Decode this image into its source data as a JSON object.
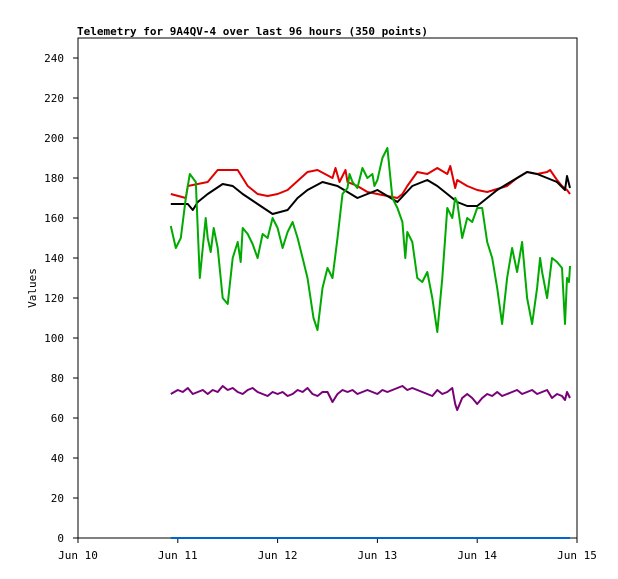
{
  "chart_data": {
    "type": "line",
    "title": "Telemetry for 9A4QV-4 over last 96 hours (350 points)",
    "xlabel": "",
    "ylabel": "Values",
    "ylim": [
      0,
      250
    ],
    "yticks": [
      0,
      20,
      40,
      60,
      80,
      100,
      120,
      140,
      160,
      180,
      200,
      220,
      240
    ],
    "xlim_days": [
      10,
      15
    ],
    "xticks": [
      {
        "day": 10,
        "label": "Jun 10"
      },
      {
        "day": 11,
        "label": "Jun 11"
      },
      {
        "day": 12,
        "label": "Jun 12"
      },
      {
        "day": 13,
        "label": "Jun 13"
      },
      {
        "day": 14,
        "label": "Jun 14"
      },
      {
        "day": 15,
        "label": "Jun 15"
      }
    ],
    "grid": false,
    "legend": "none",
    "series": [
      {
        "color": "#e00000",
        "x": [
          10.93,
          11.08,
          11.1,
          11.2,
          11.3,
          11.4,
          11.6,
          11.7,
          11.8,
          11.9,
          12.0,
          12.1,
          12.3,
          12.4,
          12.55,
          12.58,
          12.62,
          12.68,
          12.7,
          12.8,
          12.9,
          13.0,
          13.1,
          13.2,
          13.25,
          13.3,
          13.4,
          13.5,
          13.6,
          13.7,
          13.73,
          13.78,
          13.8,
          13.9,
          14.0,
          14.1,
          14.3,
          14.4,
          14.5,
          14.6,
          14.7,
          14.73,
          14.8,
          14.85,
          14.9,
          14.93
        ],
        "y": [
          172,
          170,
          176,
          177,
          178,
          184,
          184,
          176,
          172,
          171,
          172,
          174,
          183,
          184,
          180,
          185,
          178,
          184,
          178,
          176,
          173,
          172,
          171,
          170,
          172,
          176,
          183,
          182,
          185,
          182,
          186,
          175,
          179,
          176,
          174,
          173,
          176,
          180,
          183,
          182,
          183,
          184,
          179,
          176,
          174,
          172
        ]
      },
      {
        "color": "#000000",
        "x": [
          10.93,
          11.1,
          11.15,
          11.2,
          11.3,
          11.45,
          11.55,
          11.65,
          11.8,
          11.95,
          12.1,
          12.2,
          12.3,
          12.45,
          12.6,
          12.7,
          12.8,
          12.9,
          13.0,
          13.1,
          13.2,
          13.35,
          13.5,
          13.6,
          13.7,
          13.8,
          13.9,
          14.0,
          14.1,
          14.2,
          14.3,
          14.4,
          14.5,
          14.6,
          14.7,
          14.8,
          14.88,
          14.9,
          14.93
        ],
        "y": [
          167,
          167,
          164,
          168,
          172,
          177,
          176,
          172,
          167,
          162,
          164,
          170,
          174,
          178,
          176,
          173,
          170,
          172,
          174,
          171,
          168,
          176,
          179,
          176,
          172,
          168,
          166,
          166,
          170,
          174,
          177,
          180,
          183,
          182,
          180,
          178,
          174,
          181,
          175
        ]
      },
      {
        "color": "#00aa00",
        "x": [
          10.93,
          10.98,
          11.03,
          11.08,
          11.12,
          11.18,
          11.22,
          11.28,
          11.3,
          11.33,
          11.36,
          11.4,
          11.45,
          11.5,
          11.55,
          11.6,
          11.63,
          11.65,
          11.7,
          11.75,
          11.8,
          11.85,
          11.9,
          11.95,
          12.0,
          12.05,
          12.1,
          12.15,
          12.2,
          12.25,
          12.3,
          12.33,
          12.36,
          12.4,
          12.45,
          12.5,
          12.55,
          12.6,
          12.65,
          12.7,
          12.72,
          12.75,
          12.8,
          12.85,
          12.9,
          12.95,
          12.97,
          13.0,
          13.05,
          13.1,
          13.15,
          13.2,
          13.25,
          13.28,
          13.3,
          13.35,
          13.4,
          13.45,
          13.5,
          13.55,
          13.6,
          13.65,
          13.7,
          13.75,
          13.78,
          13.8,
          13.85,
          13.9,
          13.95,
          14.0,
          14.05,
          14.1,
          14.15,
          14.2,
          14.25,
          14.3,
          14.35,
          14.4,
          14.45,
          14.5,
          14.55,
          14.6,
          14.63,
          14.65,
          14.7,
          14.75,
          14.8,
          14.85,
          14.88,
          14.9,
          14.92,
          14.93
        ],
        "y": [
          156,
          145,
          150,
          170,
          182,
          178,
          130,
          160,
          150,
          143,
          155,
          145,
          120,
          117,
          140,
          148,
          138,
          155,
          152,
          147,
          140,
          152,
          150,
          160,
          155,
          145,
          153,
          158,
          150,
          140,
          130,
          120,
          110,
          104,
          125,
          135,
          130,
          150,
          172,
          175,
          182,
          178,
          175,
          185,
          180,
          182,
          176,
          179,
          190,
          195,
          170,
          165,
          158,
          140,
          153,
          148,
          130,
          128,
          133,
          120,
          103,
          130,
          165,
          160,
          170,
          168,
          150,
          160,
          158,
          165,
          165,
          148,
          140,
          125,
          107,
          130,
          145,
          133,
          148,
          120,
          107,
          125,
          140,
          133,
          120,
          140,
          138,
          135,
          107,
          130,
          128,
          136
        ]
      },
      {
        "color": "#780078",
        "x": [
          10.93,
          11.0,
          11.05,
          11.1,
          11.15,
          11.2,
          11.25,
          11.3,
          11.35,
          11.4,
          11.45,
          11.5,
          11.55,
          11.6,
          11.65,
          11.7,
          11.75,
          11.8,
          11.85,
          11.9,
          11.95,
          12.0,
          12.05,
          12.1,
          12.15,
          12.2,
          12.25,
          12.3,
          12.35,
          12.4,
          12.45,
          12.5,
          12.55,
          12.6,
          12.65,
          12.7,
          12.75,
          12.8,
          12.85,
          12.9,
          12.95,
          13.0,
          13.05,
          13.1,
          13.15,
          13.2,
          13.25,
          13.3,
          13.35,
          13.4,
          13.45,
          13.5,
          13.55,
          13.6,
          13.65,
          13.7,
          13.75,
          13.78,
          13.8,
          13.85,
          13.9,
          13.95,
          14.0,
          14.05,
          14.1,
          14.15,
          14.2,
          14.25,
          14.3,
          14.35,
          14.4,
          14.45,
          14.5,
          14.55,
          14.6,
          14.65,
          14.7,
          14.75,
          14.8,
          14.85,
          14.88,
          14.9,
          14.93
        ],
        "y": [
          72,
          74,
          73,
          75,
          72,
          73,
          74,
          72,
          74,
          73,
          76,
          74,
          75,
          73,
          72,
          74,
          75,
          73,
          72,
          71,
          73,
          72,
          73,
          71,
          72,
          74,
          73,
          75,
          72,
          71,
          73,
          73,
          68,
          72,
          74,
          73,
          74,
          72,
          73,
          74,
          73,
          72,
          74,
          73,
          74,
          75,
          76,
          74,
          75,
          74,
          73,
          72,
          71,
          74,
          72,
          73,
          75,
          67,
          64,
          70,
          72,
          70,
          67,
          70,
          72,
          71,
          73,
          71,
          72,
          73,
          74,
          72,
          73,
          74,
          72,
          73,
          74,
          70,
          72,
          71,
          69,
          73,
          70
        ]
      },
      {
        "color": "#0066cc",
        "x": [
          10.93,
          14.93
        ],
        "y": [
          0,
          0
        ]
      }
    ]
  }
}
